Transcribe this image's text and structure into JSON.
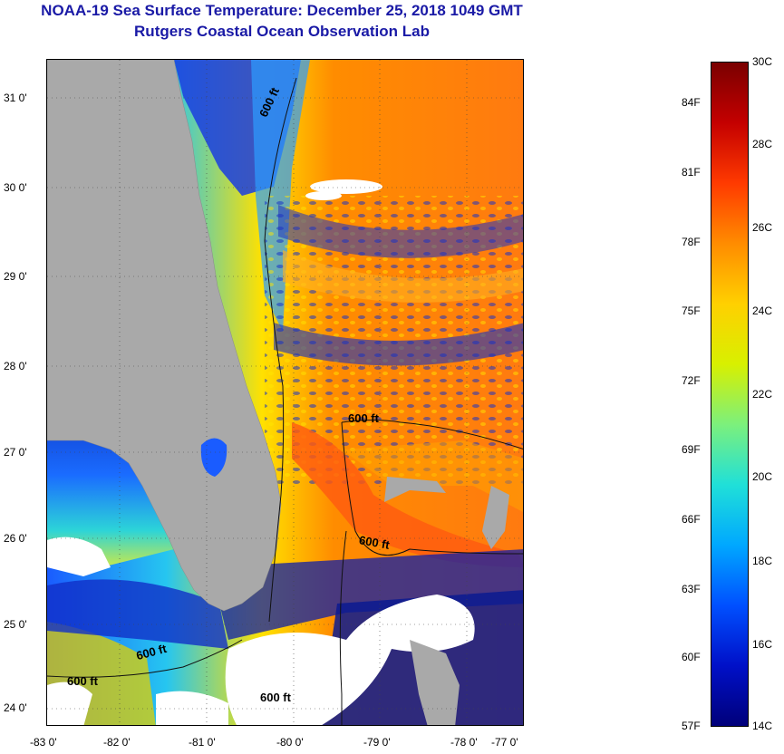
{
  "title": {
    "line1": "NOAA-19 Sea Surface Temperature:  December 25, 2018 1049 GMT",
    "line2": "Rutgers Coastal Ocean Observation Lab"
  },
  "map": {
    "lat_ticks": [
      "31 0'",
      "30 0'",
      "29 0'",
      "28 0'",
      "27 0'",
      "26 0'",
      "25 0'",
      "24 0'"
    ],
    "lon_ticks": [
      "-83 0'",
      "-82 0'",
      "-81 0'",
      "-80 0'",
      "-79 0'",
      "-78 0'",
      "-77 0'"
    ],
    "contour_labels": [
      "600 ft",
      "600 ft",
      "600 ft",
      "600 ft",
      "600 ft",
      "600 ft"
    ],
    "land_color": "#a9a9a9",
    "cloud_color": "#ffffff"
  },
  "colorbar": {
    "celsius_labels": [
      "30C",
      "28C",
      "26C",
      "24C",
      "22C",
      "20C",
      "18C",
      "16C",
      "14C"
    ],
    "fahrenheit_labels": [
      "84F",
      "81F",
      "78F",
      "75F",
      "72F",
      "69F",
      "66F",
      "63F",
      "60F",
      "57F"
    ],
    "colors": [
      "#7a0000",
      "#c40000",
      "#ff3a00",
      "#ff8c00",
      "#ffd000",
      "#d8f000",
      "#7cf07c",
      "#20e0d8",
      "#00a8ff",
      "#0050ff",
      "#0010c8",
      "#00007a"
    ]
  },
  "icons": {
    "land": "land-mass",
    "clouds": "cloud-mask"
  }
}
